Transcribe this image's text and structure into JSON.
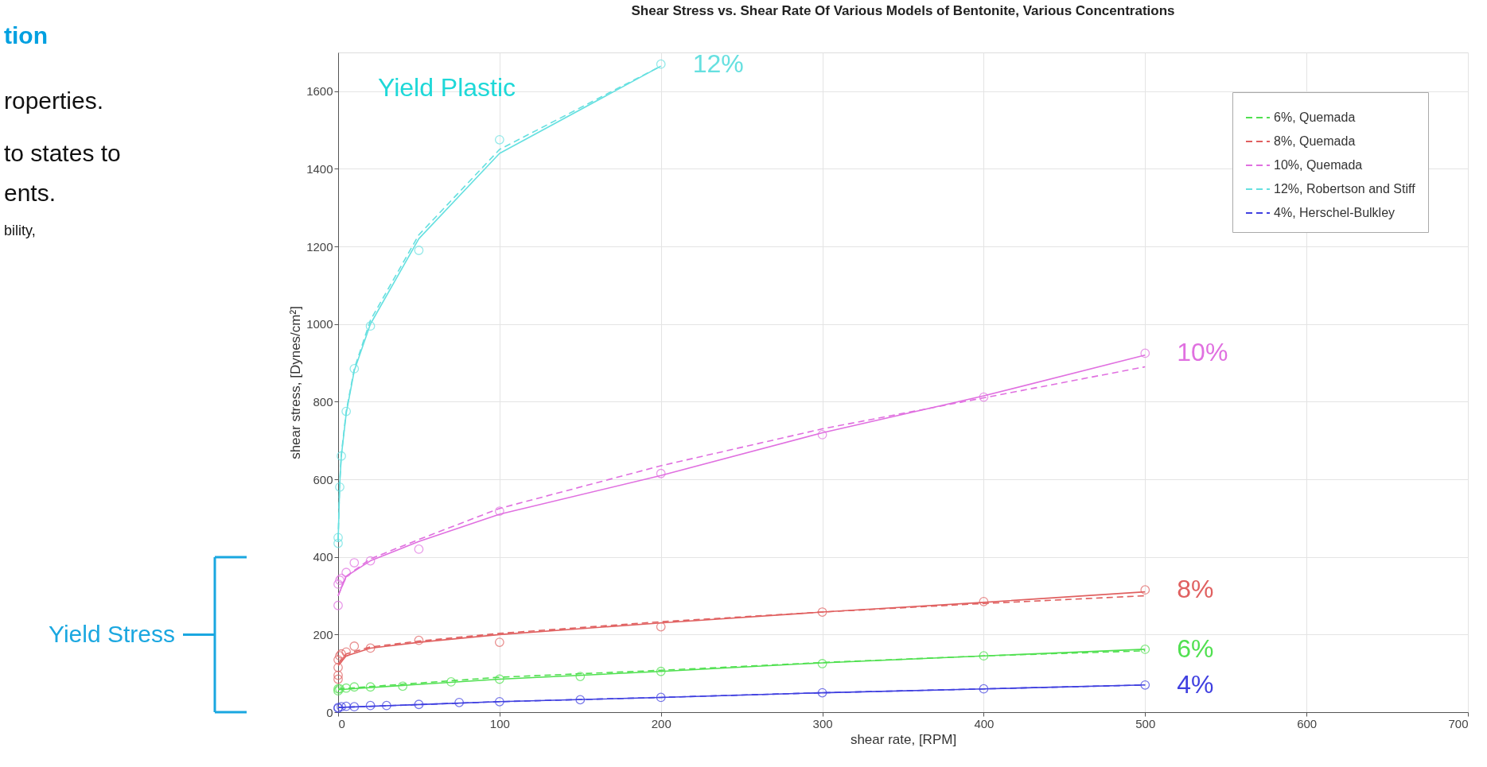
{
  "chart_data": {
    "type": "line",
    "title": "Shear Stress vs. Shear Rate Of Various Models of Bentonite, Various Concentrations",
    "xlabel": "shear rate, [RPM]",
    "ylabel": "shear stress, [Dynes/cm²]",
    "xlim": [
      0,
      700
    ],
    "xticks": [
      0,
      100,
      200,
      300,
      400,
      500,
      600,
      700
    ],
    "ylim": [
      0,
      1700
    ],
    "yticks": [
      0,
      200,
      400,
      600,
      800,
      1000,
      1200,
      1400,
      1600
    ],
    "grid": true,
    "legend": "top right",
    "series": [
      {
        "name": "12%",
        "type": "scatter",
        "marker": "circle",
        "color": "#66e0e0",
        "x": [
          0,
          0,
          1,
          2,
          5,
          10,
          20,
          50,
          100,
          200
        ],
        "values": [
          435,
          450,
          580,
          660,
          775,
          885,
          995,
          1190,
          1475,
          1670
        ]
      },
      {
        "line_style": "solid",
        "color": "#66e0e0",
        "x": [
          0,
          1,
          2,
          5,
          10,
          20,
          50,
          100,
          200
        ],
        "values": [
          440,
          590,
          660,
          770,
          880,
          1000,
          1220,
          1440,
          1665
        ]
      },
      {
        "name": "10%",
        "type": "scatter",
        "marker": "circle",
        "color": "#e070e0",
        "x": [
          0,
          0,
          1,
          2,
          5,
          10,
          20,
          50,
          100,
          200,
          300,
          400,
          500
        ],
        "values": [
          275,
          330,
          340,
          345,
          360,
          385,
          390,
          420,
          518,
          615,
          715,
          812,
          925
        ]
      },
      {
        "line_style": "solid",
        "color": "#e070e0",
        "x": [
          0,
          5,
          20,
          50,
          100,
          200,
          300,
          400,
          500
        ],
        "values": [
          300,
          350,
          390,
          440,
          510,
          610,
          720,
          815,
          920
        ]
      },
      {
        "name": "8%",
        "type": "scatter",
        "marker": "circle",
        "color": "#e06060",
        "x": [
          0,
          0,
          0,
          0,
          1,
          2,
          5,
          10,
          20,
          50,
          100,
          200,
          300,
          400,
          500
        ],
        "values": [
          85,
          95,
          115,
          135,
          145,
          150,
          155,
          170,
          165,
          185,
          180,
          220,
          258,
          285,
          315
        ]
      },
      {
        "line_style": "solid",
        "color": "#e06060",
        "x": [
          0,
          5,
          20,
          50,
          100,
          200,
          300,
          400,
          500
        ],
        "values": [
          120,
          145,
          165,
          180,
          200,
          230,
          258,
          283,
          310
        ]
      },
      {
        "name": "6%",
        "type": "scatter",
        "marker": "circle",
        "color": "#50e050",
        "x": [
          0,
          0,
          1,
          5,
          10,
          20,
          40,
          70,
          100,
          150,
          200,
          300,
          400,
          500
        ],
        "values": [
          55,
          60,
          60,
          62,
          65,
          65,
          67,
          78,
          85,
          92,
          105,
          125,
          145,
          162
        ]
      },
      {
        "line_style": "solid",
        "color": "#50e050",
        "x": [
          0,
          100,
          200,
          300,
          400,
          500
        ],
        "values": [
          58,
          85,
          105,
          127,
          145,
          162
        ]
      },
      {
        "name": "4%",
        "type": "scatter",
        "marker": "circle",
        "color": "#4040e0",
        "x": [
          0,
          0,
          2,
          5,
          10,
          20,
          30,
          50,
          75,
          100,
          150,
          200,
          300,
          400,
          500
        ],
        "values": [
          10,
          12,
          14,
          15,
          14,
          17,
          17,
          20,
          25,
          27,
          32,
          38,
          50,
          60,
          70
        ]
      },
      {
        "line_style": "solid",
        "color": "#4040e0",
        "x": [
          0,
          100,
          200,
          300,
          400,
          500
        ],
        "values": [
          12,
          27,
          38,
          50,
          60,
          70
        ]
      },
      {
        "name": "6%, Quemada",
        "line_style": "dashed",
        "color": "#50e050",
        "x": [
          0,
          100,
          200,
          300,
          400,
          500
        ],
        "values": [
          60,
          90,
          108,
          128,
          145,
          158
        ]
      },
      {
        "name": "8%, Quemada",
        "line_style": "dashed",
        "color": "#e06060",
        "x": [
          0,
          5,
          20,
          50,
          100,
          200,
          300,
          400,
          500
        ],
        "values": [
          125,
          150,
          168,
          183,
          203,
          233,
          258,
          280,
          300
        ]
      },
      {
        "name": "10%, Quemada",
        "line_style": "dashed",
        "color": "#e070e0",
        "x": [
          0,
          5,
          20,
          50,
          100,
          200,
          300,
          400,
          500
        ],
        "values": [
          300,
          350,
          395,
          445,
          525,
          635,
          730,
          810,
          890
        ]
      },
      {
        "name": "12%, Robertson and Stiff",
        "line_style": "dashed",
        "color": "#66e0e0",
        "x": [
          0,
          1,
          2,
          5,
          10,
          20,
          50,
          100,
          200
        ],
        "values": [
          445,
          595,
          665,
          775,
          885,
          1010,
          1230,
          1450,
          1665
        ]
      },
      {
        "name": "4%, Herschel-Bulkley",
        "line_style": "dashed",
        "color": "#4040e0",
        "x": [
          0,
          100,
          200,
          300,
          400,
          500
        ],
        "values": [
          12,
          27,
          38,
          50,
          60,
          70
        ]
      }
    ],
    "annotations": [
      "tion",
      "roperties.",
      "to states to",
      "ents.",
      "bility,",
      "Yield Plastic",
      "Yield Stress"
    ]
  }
}
